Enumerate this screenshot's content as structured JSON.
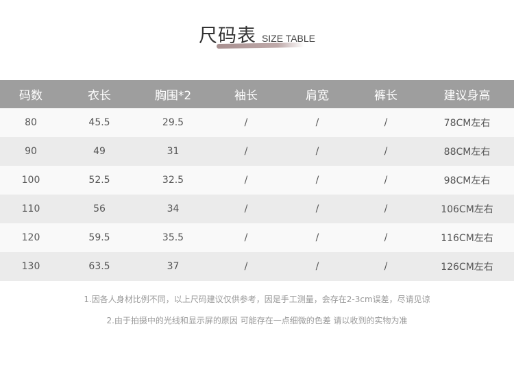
{
  "title": {
    "zh": "尺码表",
    "en": "SIZE TABLE"
  },
  "table": {
    "headers": [
      "码数",
      "衣长",
      "胸围*2",
      "袖长",
      "肩宽",
      "裤长",
      "建议身高"
    ],
    "rows": [
      [
        "80",
        "45.5",
        "29.5",
        "/",
        "/",
        "/",
        "78CM左右"
      ],
      [
        "90",
        "49",
        "31",
        "/",
        "/",
        "/",
        "88CM左右"
      ],
      [
        "100",
        "52.5",
        "32.5",
        "/",
        "/",
        "/",
        "98CM左右"
      ],
      [
        "110",
        "56",
        "34",
        "/",
        "/",
        "/",
        "106CM左右"
      ],
      [
        "120",
        "59.5",
        "35.5",
        "/",
        "/",
        "/",
        "116CM左右"
      ],
      [
        "130",
        "63.5",
        "37",
        "/",
        "/",
        "/",
        "126CM左右"
      ]
    ]
  },
  "notes": [
    "1.因各人身材比例不同，以上尺码建议仅供参考，因是手工测量，会存在2-3cm误差，尽请见谅",
    "2.由于拍摄中的光线和显示屏的原因 可能存在一点细微的色差 请以收到的实物为准"
  ],
  "colors": {
    "header_bg": "#9e9e9e",
    "row_light": "#f9f9f9",
    "row_dark": "#ebebeb"
  }
}
